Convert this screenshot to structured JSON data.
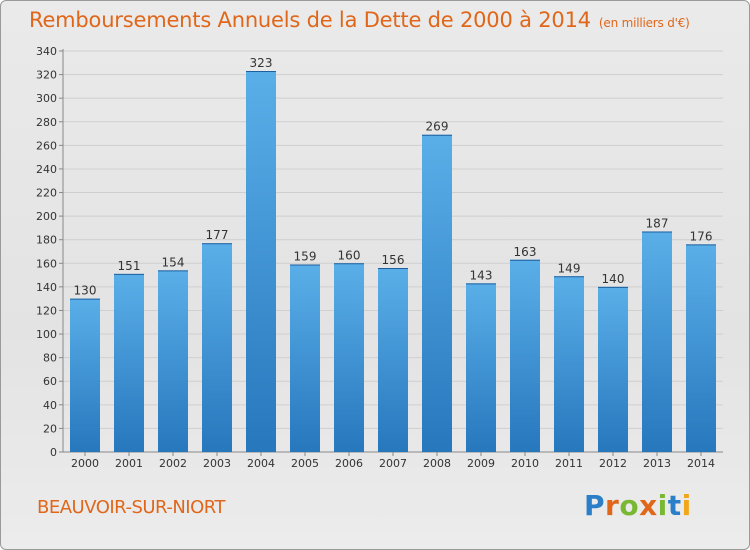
{
  "header": {
    "title": "Remboursements Annuels de la Dette de 2000 à 2014",
    "unit": "(en milliers d'€)"
  },
  "footer": {
    "commune": "BEAUVOIR-SUR-NIORT",
    "brand": "Proxiti"
  },
  "colors": {
    "accent": "#e0671a",
    "bar_top": "#5aafe8",
    "bar_bottom": "#2777bd"
  },
  "chart_data": {
    "type": "bar",
    "title": "Remboursements Annuels de la Dette de 2000 à 2014",
    "xlabel": "",
    "ylabel": "",
    "categories": [
      "2000",
      "2001",
      "2002",
      "2003",
      "2004",
      "2005",
      "2006",
      "2007",
      "2008",
      "2009",
      "2010",
      "2011",
      "2012",
      "2013",
      "2014"
    ],
    "values": [
      130,
      151,
      154,
      177,
      323,
      159,
      160,
      156,
      269,
      143,
      163,
      149,
      140,
      187,
      176
    ],
    "ylim": [
      0,
      340
    ],
    "yticks": [
      0,
      20,
      40,
      60,
      80,
      100,
      120,
      140,
      160,
      180,
      200,
      220,
      240,
      260,
      280,
      300,
      320,
      340
    ],
    "grid": true,
    "legend": "none"
  }
}
